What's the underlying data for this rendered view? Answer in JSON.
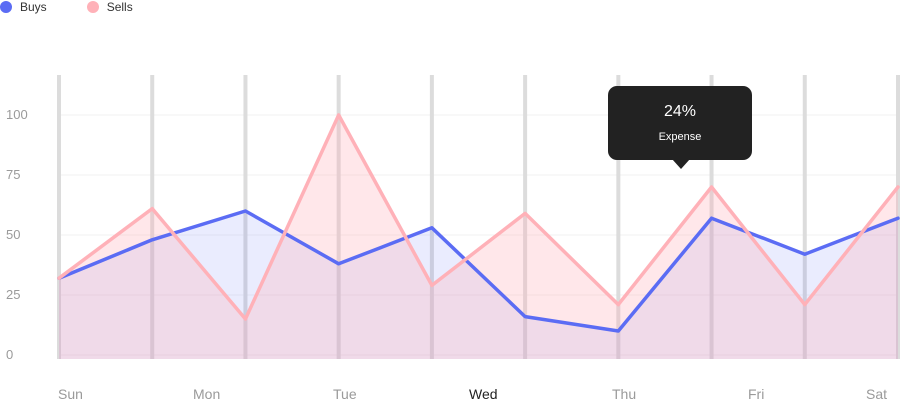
{
  "legend": [
    {
      "label": "Buys",
      "color": "#5b6cf4"
    },
    {
      "label": "Sells",
      "color": "#ffb1b8"
    }
  ],
  "tooltip": {
    "value": "24%",
    "label": "Expense"
  },
  "chart_data": {
    "type": "area",
    "title": "",
    "xlabel": "",
    "ylabel": "",
    "x_ticks": [
      "Sun",
      "Mon",
      "Tue",
      "Wed",
      "Thu",
      "Fri",
      "Sat"
    ],
    "highlighted_x_tick": "Wed",
    "y_ticks": [
      0,
      25,
      50,
      75,
      100
    ],
    "ylim": [
      0,
      110
    ],
    "grid": true,
    "legend_position": "top-left",
    "x": [
      0,
      1,
      2,
      3,
      4,
      5,
      6,
      7,
      8,
      9
    ],
    "series": [
      {
        "name": "Buys",
        "color": "#5b6cf4",
        "values": [
          32,
          48,
          60,
          38,
          53,
          16,
          10,
          57,
          42,
          57
        ]
      },
      {
        "name": "Sells",
        "color": "#ffb1b8",
        "values": [
          32,
          61,
          15,
          100,
          29,
          59,
          21,
          70,
          21,
          70
        ]
      }
    ]
  }
}
